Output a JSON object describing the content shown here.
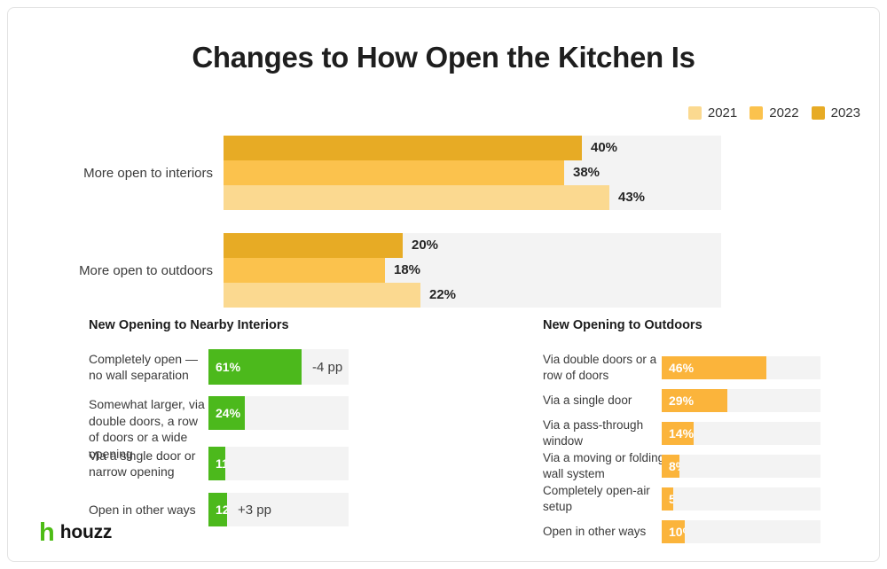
{
  "title": "Changes to How Open the Kitchen Is",
  "legend": {
    "items": [
      {
        "label": "2021",
        "color": "#FBD990"
      },
      {
        "label": "2022",
        "color": "#FBC24D"
      },
      {
        "label": "2023",
        "color": "#E7AB25"
      }
    ]
  },
  "brand": {
    "name": "houzz",
    "icon": "houzz-h-icon",
    "icon_color": "#4DBC15"
  },
  "colors": {
    "green_bar": "#4CB91C",
    "amber_bar": "#FBB43B",
    "track": "#F3F3F3"
  },
  "chart_data": [
    {
      "type": "bar",
      "orientation": "horizontal",
      "categories": [
        "More open to interiors",
        "More open to outdoors"
      ],
      "series": [
        {
          "name": "2023",
          "color": "#E7AB25",
          "values": [
            40,
            20
          ]
        },
        {
          "name": "2022",
          "color": "#FBC24D",
          "values": [
            38,
            18
          ]
        },
        {
          "name": "2021",
          "color": "#FBD990",
          "values": [
            43,
            22
          ]
        }
      ],
      "value_suffix": "%",
      "xlim": [
        0,
        55.5
      ],
      "grid": false,
      "legend_position": "top-right",
      "track_color": "#F3F3F3"
    },
    {
      "type": "bar",
      "orientation": "horizontal",
      "title": "New Opening to Nearby Interiors",
      "bar_color": "#4CB91C",
      "categories": [
        "Completely open — no wall separation",
        "Somewhat larger, via double doors, a row of doors or a wide opening",
        "Via a single door or narrow opening",
        "Open in other ways"
      ],
      "values": [
        61,
        24,
        11,
        12
      ],
      "value_suffix": "%",
      "annotations": [
        {
          "category_index": 0,
          "text": "-4 pp"
        },
        {
          "category_index": 3,
          "text": "+3 pp"
        }
      ],
      "xlim": [
        0,
        92
      ],
      "track_color": "#F3F3F3"
    },
    {
      "type": "bar",
      "orientation": "horizontal",
      "title": "New Opening to Outdoors",
      "bar_color": "#FBB43B",
      "categories": [
        "Via double doors or a row of doors",
        "Via a single door",
        "Via a pass-through window",
        "Via a moving or folding wall system",
        "Completely open-air setup",
        "Open in other ways"
      ],
      "values": [
        46,
        29,
        14,
        8,
        5,
        10
      ],
      "value_suffix": "%",
      "xlim": [
        0,
        70
      ],
      "track_color": "#F3F3F3"
    }
  ]
}
